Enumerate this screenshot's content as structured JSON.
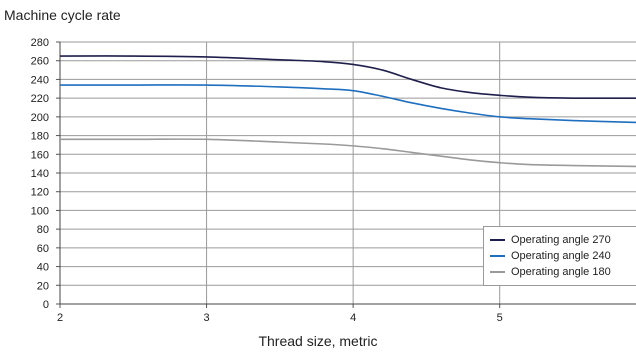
{
  "chart_data": {
    "type": "line",
    "title": "",
    "ylabel": "Machine cycle rate",
    "xlabel": "Thread size, metric",
    "xlim": [
      2,
      5.93
    ],
    "ylim": [
      0,
      280
    ],
    "x_ticks": [
      2,
      3,
      4,
      5
    ],
    "y_ticks": [
      0,
      20,
      40,
      60,
      80,
      100,
      120,
      140,
      160,
      180,
      200,
      220,
      240,
      260,
      280
    ],
    "grid": "horizontal and vertical",
    "legend_position": "bottom-right",
    "series": [
      {
        "name": "Operating angle 270",
        "color": "#1f1f4d",
        "x": [
          2,
          2.5,
          3,
          3.5,
          3.8,
          4,
          4.2,
          4.4,
          4.6,
          4.8,
          5,
          5.2,
          5.5,
          5.93
        ],
        "values": [
          265,
          265,
          264,
          261,
          259,
          256,
          250,
          240,
          231,
          226,
          223,
          221,
          220,
          220
        ]
      },
      {
        "name": "Operating angle 240",
        "color": "#1f6fbf",
        "x": [
          2,
          2.5,
          3,
          3.5,
          3.8,
          4,
          4.2,
          4.4,
          4.6,
          4.8,
          5,
          5.2,
          5.5,
          5.93
        ],
        "values": [
          234,
          234,
          234,
          232,
          230,
          228,
          222,
          215,
          209,
          204,
          200,
          198,
          196,
          194
        ]
      },
      {
        "name": "Operating angle 180",
        "color": "#9a9a9a",
        "x": [
          2,
          2.5,
          3,
          3.5,
          3.8,
          4,
          4.2,
          4.4,
          4.6,
          4.8,
          5,
          5.2,
          5.5,
          5.93
        ],
        "values": [
          176,
          176,
          176,
          173,
          171,
          169,
          166,
          162,
          158,
          154,
          151,
          149,
          148,
          147
        ]
      }
    ]
  }
}
